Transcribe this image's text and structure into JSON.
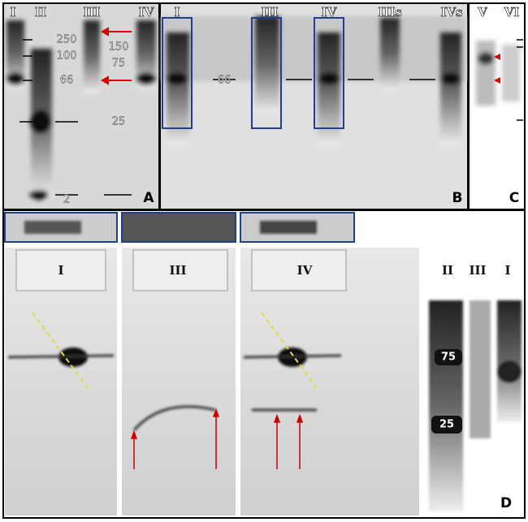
{
  "panel_a": {
    "letter": "A",
    "lanes": [
      "I",
      "II",
      "III",
      "IV"
    ],
    "markers": [
      "250",
      "100",
      "66",
      "150",
      "75",
      "25",
      "2"
    ]
  },
  "panel_b": {
    "letter": "B",
    "lanes": [
      "I",
      "III",
      "IV",
      "IIIs",
      "IVs"
    ],
    "marker": "66"
  },
  "panel_c": {
    "letter": "C",
    "lanes": [
      "V",
      "VI"
    ]
  },
  "panel_d": {
    "letter": "D",
    "gels": [
      "I",
      "III",
      "IV"
    ],
    "lanes": [
      "II",
      "III",
      "I"
    ],
    "markers": [
      "75",
      "25"
    ]
  }
}
